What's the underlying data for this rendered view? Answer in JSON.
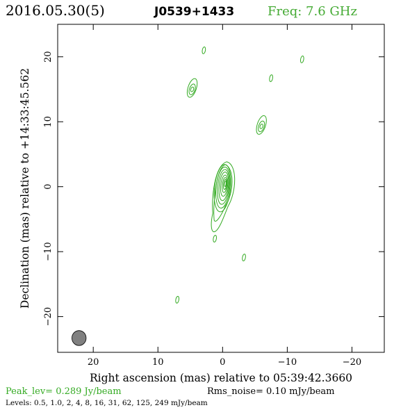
{
  "header": {
    "date": "2016.05.30(5)",
    "source": "J0539+1433",
    "freq": "Freq: 7.6 GHz"
  },
  "footer": {
    "peak": "Peak_lev=  0.289 Jy/beam",
    "rms": "Rms_noise= 0.10 mJy/beam",
    "levels": "Levels: 0.5, 1.0,   2,   4,   8,  16,  31,  62, 125, 249 mJy/beam"
  },
  "colors": {
    "contour": "#33aa22",
    "freq_text": "#44aa33",
    "peak_text": "#33aa22",
    "beam": "#808080",
    "axes": "#000000"
  },
  "chart_data": {
    "type": "contour",
    "xlabel": "Right ascension (mas) relative to 05:39:42.3660",
    "ylabel": "Declination (mas) relative to +14:33:45.562",
    "xlim": [
      25.5,
      -25
    ],
    "ylim": [
      -25.5,
      25
    ],
    "x_ticks": [
      20,
      10,
      0,
      -10,
      -20
    ],
    "y_ticks": [
      20,
      10,
      0,
      -10,
      -20
    ],
    "x_tick_labels": [
      "20",
      "10",
      "0",
      "−10",
      "−20"
    ],
    "y_tick_labels": [
      "20",
      "10",
      "0",
      "−10",
      "−20"
    ],
    "contour_levels_mJy": [
      0.5,
      1.0,
      2,
      4,
      8,
      16,
      31,
      62,
      125,
      249
    ],
    "peak_Jy_per_beam": 0.289,
    "rms_noise_mJy_per_beam": 0.1,
    "beam": {
      "x": 22.2,
      "y": -23.3,
      "major_mas": 2.3,
      "minor_mas": 1.1,
      "pa_deg": 0
    },
    "core": {
      "x": -0.2,
      "y": 0.2
    },
    "features": [
      {
        "x": 4.7,
        "y": 15.2,
        "level": 2
      },
      {
        "x": -6.0,
        "y": 9.5,
        "level": 2
      },
      {
        "x": -7.5,
        "y": 16.7,
        "level": 1
      },
      {
        "x": 2.9,
        "y": 21.0,
        "level": 1
      },
      {
        "x": -12.3,
        "y": 19.6,
        "level": 1
      },
      {
        "x": -3.3,
        "y": -10.9,
        "level": 1
      },
      {
        "x": 7.0,
        "y": -17.4,
        "level": 1
      },
      {
        "x": 1.2,
        "y": -8.0,
        "level": 1
      }
    ]
  }
}
